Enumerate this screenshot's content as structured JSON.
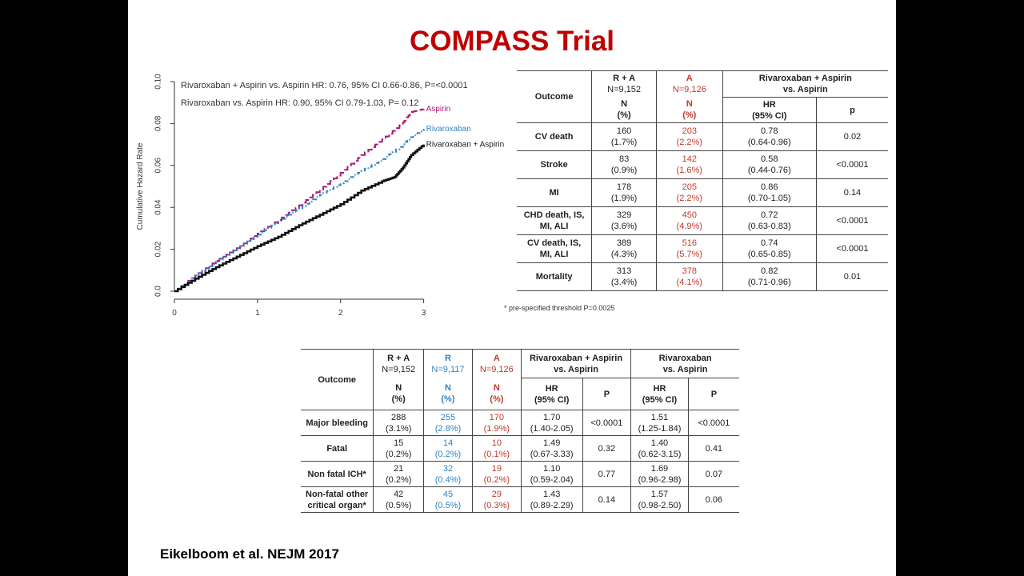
{
  "title": "COMPASS Trial",
  "citation": "Eikelboom et al. NEJM 2017",
  "colors": {
    "title": "#c00000",
    "aspirin": "#b0186e",
    "rivaroxaban": "#2e86c1",
    "combo": "#111111",
    "red": "#c0392b",
    "blue": "#2e86c1"
  },
  "chart_data": {
    "type": "line",
    "ylabel": "Cumulative Hazard Rate",
    "xlabel": "",
    "xlim": [
      0,
      3.1
    ],
    "ylim": [
      0,
      0.1
    ],
    "xticks": [
      "0",
      "1",
      "2",
      "3"
    ],
    "yticks": [
      "0.0",
      "0.02",
      "0.04",
      "0.06",
      "0.08",
      "0.10"
    ],
    "annotations": [
      "Rivaroxaban + Aspirin vs. Aspirin    HR: 0.76, 95% CI 0.66-0.86,  P=<0.0001",
      "Rivaroxaban vs. Aspirin    HR: 0.90, 95% CI 0.79-1.03,  P= 0.12"
    ],
    "series": [
      {
        "name": "Aspirin",
        "color": "#b0186e",
        "dash": "9,4",
        "x": [
          0,
          0.25,
          0.5,
          0.75,
          1.0,
          1.25,
          1.5,
          1.75,
          2.0,
          2.25,
          2.5,
          2.75,
          2.85,
          3.0
        ],
        "y": [
          0,
          0.0075,
          0.0145,
          0.0205,
          0.0275,
          0.034,
          0.041,
          0.0485,
          0.0565,
          0.065,
          0.0725,
          0.0805,
          0.0855,
          0.087
        ]
      },
      {
        "name": "Rivaroxaban",
        "color": "#2e86c1",
        "dash": "5,3,1.5,3",
        "x": [
          0,
          0.25,
          0.5,
          0.75,
          1.0,
          1.25,
          1.5,
          1.75,
          2.0,
          2.25,
          2.5,
          2.75,
          2.85,
          3.0
        ],
        "y": [
          0,
          0.0075,
          0.014,
          0.0205,
          0.027,
          0.0335,
          0.0395,
          0.046,
          0.0515,
          0.0575,
          0.063,
          0.07,
          0.0735,
          0.0775
        ]
      },
      {
        "name": "Rivaroxaban + Aspirin",
        "color": "#111111",
        "dash": "",
        "x": [
          0,
          0.25,
          0.5,
          0.75,
          1.0,
          1.25,
          1.5,
          1.75,
          2.0,
          2.25,
          2.5,
          2.65,
          2.75,
          2.85,
          3.0
        ],
        "y": [
          0,
          0.006,
          0.0115,
          0.0165,
          0.0215,
          0.026,
          0.0315,
          0.0365,
          0.0415,
          0.048,
          0.0525,
          0.0545,
          0.059,
          0.065,
          0.07
        ]
      }
    ]
  },
  "table1": {
    "headers": {
      "outcome": "Outcome",
      "ra": "R + A",
      "ra_n": "N=9,152",
      "a": "A",
      "a_n": "N=9,126",
      "comp": "Rivaroxaban + Aspirin",
      "comp2": "vs. Aspirin",
      "n1": "N",
      "pct": "(%)",
      "hr": "HR",
      "ci": "(95% CI)",
      "p": "p"
    },
    "rows": [
      {
        "outcome": "CV death",
        "outcome2": "",
        "ra": "160",
        "ra_pct": "(1.7%)",
        "a": "203",
        "a_pct": "(2.2%)",
        "hr": "0.78",
        "ci": "(0.64-0.96)",
        "p": "0.02"
      },
      {
        "outcome": "Stroke",
        "outcome2": "",
        "ra": "83",
        "ra_pct": "(0.9%)",
        "a": "142",
        "a_pct": "(1.6%)",
        "hr": "0.58",
        "ci": "(0.44-0.76)",
        "p": "<0.0001"
      },
      {
        "outcome": "MI",
        "outcome2": "",
        "ra": "178",
        "ra_pct": "(1.9%)",
        "a": "205",
        "a_pct": "(2.2%)",
        "hr": "0.86",
        "ci": "(0.70-1.05)",
        "p": "0.14"
      },
      {
        "outcome": "CHD  death, IS,",
        "outcome2": "MI, ALI",
        "ra": "329",
        "ra_pct": "(3.6%)",
        "a": "450",
        "a_pct": "(4.9%)",
        "hr": "0.72",
        "ci": "(0.63-0.83)",
        "p": "<0.0001"
      },
      {
        "outcome": "CV death, IS,",
        "outcome2": "MI, ALI",
        "ra": "389",
        "ra_pct": "(4.3%)",
        "a": "516",
        "a_pct": "(5.7%)",
        "hr": "0.74",
        "ci": "(0.65-0.85)",
        "p": "<0.0001"
      },
      {
        "outcome": "Mortality",
        "outcome2": "",
        "ra": "313",
        "ra_pct": "(3.4%)",
        "a": "378",
        "a_pct": "(4.1%)",
        "hr": "0.82",
        "ci": "(0.71-0.96)",
        "p": "0.01"
      }
    ],
    "footnote": "* pre-specified threshold P=0.0025"
  },
  "table2": {
    "headers": {
      "outcome": "Outcome",
      "ra": "R + A",
      "ra_n": "N=9,152",
      "r": "R",
      "r_n": "N=9,117",
      "a": "A",
      "a_n": "N=9,126",
      "comp1": "Rivaroxaban + Aspirin",
      "comp1b": "vs. Aspirin",
      "comp2": "Rivaroxaban",
      "comp2b": "vs. Aspirin",
      "n1": "N",
      "pct": "(%)",
      "hr": "HR",
      "ci": "(95% CI)",
      "p": "P"
    },
    "rows": [
      {
        "outcome": "Major bleeding",
        "outcome2": "",
        "ra": "288",
        "ra_pct": "(3.1%)",
        "r": "255",
        "r_pct": "(2.8%)",
        "a": "170",
        "a_pct": "(1.9%)",
        "hr1": "1.70",
        "ci1": "(1.40-2.05)",
        "p1": "<0.0001",
        "hr2": "1.51",
        "ci2": "(1.25-1.84)",
        "p2": "<0.0001"
      },
      {
        "outcome": "Fatal",
        "outcome2": "",
        "ra": "15",
        "ra_pct": "(0.2%)",
        "r": "14",
        "r_pct": "(0.2%)",
        "a": "10",
        "a_pct": "(0.1%)",
        "hr1": "1.49",
        "ci1": "(0.67-3.33)",
        "p1": "0.32",
        "hr2": "1.40",
        "ci2": "(0.62-3.15)",
        "p2": "0.41"
      },
      {
        "outcome": "Non fatal ICH*",
        "outcome2": "",
        "ra": "21",
        "ra_pct": "(0.2%)",
        "r": "32",
        "r_pct": "(0.4%)",
        "a": "19",
        "a_pct": "(0.2%)",
        "hr1": "1.10",
        "ci1": "(0.59-2.04)",
        "p1": "0.77",
        "hr2": "1.69",
        "ci2": "(0.96-2.98)",
        "p2": "0.07"
      },
      {
        "outcome": "Non-fatal other",
        "outcome2": "critical organ*",
        "ra": "42",
        "ra_pct": "(0.5%)",
        "r": "45",
        "r_pct": "(0.5%)",
        "a": "29",
        "a_pct": "(0.3%)",
        "hr1": "1.43",
        "ci1": "(0.89-2.29)",
        "p1": "0.14",
        "hr2": "1.57",
        "ci2": "(0.98-2.50)",
        "p2": "0.06"
      }
    ]
  }
}
